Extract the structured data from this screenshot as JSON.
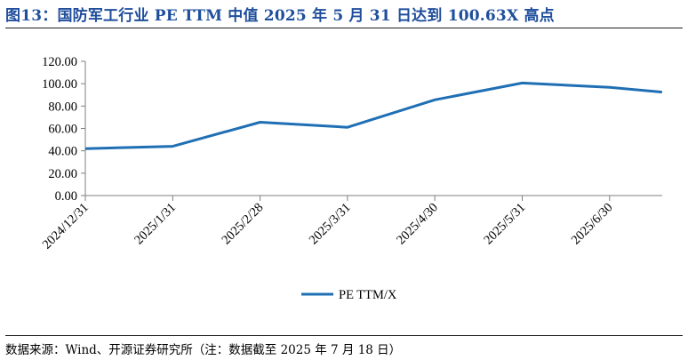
{
  "title": "图13：国防军工行业 PE TTM 中值 2025 年 5 月 31 日达到 100.63X 高点",
  "source": "数据来源：Wind、开源证券研究所（注：数据截至 2025 年 7 月 18 日）",
  "chart_data": {
    "type": "line",
    "title": "图13：国防军工行业 PE TTM 中值 2025 年 5 月 31 日达到 100.63X 高点",
    "xlabel": "",
    "ylabel": "",
    "ylim": [
      0,
      120
    ],
    "yticks": [
      "0.00",
      "20.00",
      "40.00",
      "60.00",
      "80.00",
      "100.00",
      "120.00"
    ],
    "categories": [
      "2024/12/31",
      "2025/1/31",
      "2025/2/28",
      "2025/3/31",
      "2025/4/30",
      "2025/5/31",
      "2025/6/30"
    ],
    "series": [
      {
        "name": "PE TTM/X",
        "color": "#1f6fb4",
        "x": [
          0,
          1,
          2,
          3,
          4,
          5,
          6,
          6.6
        ],
        "values": [
          42.0,
          44.0,
          65.6,
          61.0,
          85.6,
          100.63,
          96.8,
          92.5
        ]
      }
    ],
    "grid": false,
    "legend": "bottom-center"
  }
}
